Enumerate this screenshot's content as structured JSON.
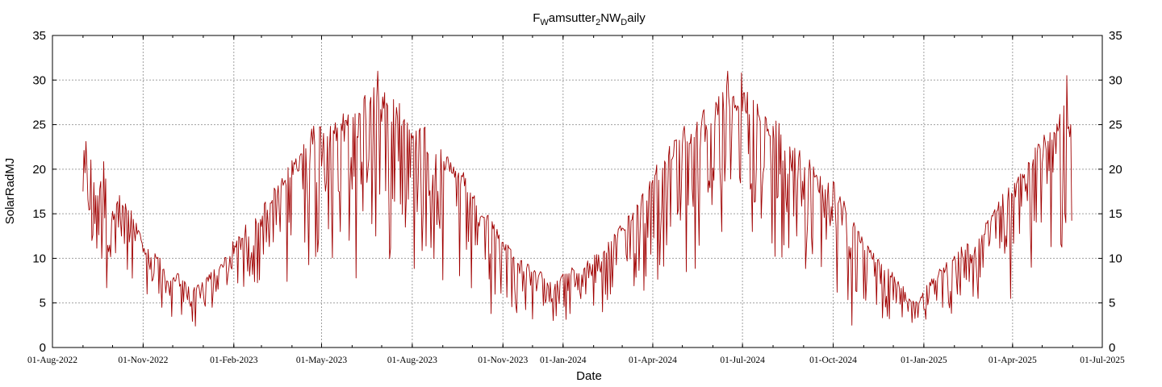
{
  "chart_data": {
    "type": "line",
    "title": {
      "parts": [
        {
          "text": "F",
          "sub": false
        },
        {
          "text": "W",
          "sub": true
        },
        {
          "text": "amsutter",
          "sub": false
        },
        {
          "text": "2",
          "sub": true
        },
        {
          "text": "NW",
          "sub": false
        },
        {
          "text": "D",
          "sub": true
        },
        {
          "text": "aily",
          "sub": false
        }
      ]
    },
    "xlabel": "Date",
    "ylabel": "SolarRadMJ",
    "ylim": [
      0,
      35
    ],
    "yticks": [
      "0",
      "5",
      "10",
      "15",
      "20",
      "25",
      "30",
      "35"
    ],
    "xlim": [
      "2022-08-01",
      "2025-07-01"
    ],
    "xticks": [
      {
        "date": "2022-08-01",
        "label": "01-Aug-2022"
      },
      {
        "date": "2022-11-01",
        "label": "01-Nov-2022"
      },
      {
        "date": "2023-02-01",
        "label": "01-Feb-2023"
      },
      {
        "date": "2023-05-01",
        "label": "01-May-2023"
      },
      {
        "date": "2023-08-01",
        "label": "01-Aug-2023"
      },
      {
        "date": "2023-11-01",
        "label": "01-Nov-2023"
      },
      {
        "date": "2024-01-01",
        "label": "01-Jan-2024"
      },
      {
        "date": "2024-04-01",
        "label": "01-Apr-2024"
      },
      {
        "date": "2024-07-01",
        "label": "01-Jul-2024"
      },
      {
        "date": "2024-10-01",
        "label": "01-Oct-2024"
      },
      {
        "date": "2025-01-01",
        "label": "01-Jan-2025"
      },
      {
        "date": "2025-04-01",
        "label": "01-Apr-2025"
      },
      {
        "date": "2025-07-01",
        "label": "01-Jul-2025"
      }
    ],
    "grid": true,
    "series": [
      {
        "color": "#a00000",
        "start_date": "2022-09-01",
        "end_date": "2025-05-31",
        "points": [
          [
            "2022-09-01",
            23.6
          ],
          [
            "2022-09-08",
            21.5
          ],
          [
            "2022-09-15",
            17.0
          ],
          [
            "2022-09-22",
            20.5
          ],
          [
            "2022-09-29",
            14.0
          ],
          [
            "2022-10-06",
            17.2
          ],
          [
            "2022-10-13",
            15.8
          ],
          [
            "2022-10-20",
            15.2
          ],
          [
            "2022-10-27",
            13.0
          ],
          [
            "2022-11-03",
            11.5
          ],
          [
            "2022-11-10",
            10.8
          ],
          [
            "2022-11-17",
            10.2
          ],
          [
            "2022-11-24",
            8.0
          ],
          [
            "2022-12-01",
            7.5
          ],
          [
            "2022-12-08",
            8.5
          ],
          [
            "2022-12-15",
            7.2
          ],
          [
            "2022-12-22",
            6.5
          ],
          [
            "2022-12-29",
            7.0
          ],
          [
            "2023-01-05",
            7.8
          ],
          [
            "2023-01-12",
            8.6
          ],
          [
            "2023-01-19",
            9.5
          ],
          [
            "2023-01-26",
            10.4
          ],
          [
            "2023-02-02",
            12.0
          ],
          [
            "2023-02-09",
            12.8
          ],
          [
            "2023-02-16",
            13.8
          ],
          [
            "2023-02-23",
            14.5
          ],
          [
            "2023-03-02",
            15.5
          ],
          [
            "2023-03-09",
            16.8
          ],
          [
            "2023-03-16",
            17.8
          ],
          [
            "2023-03-23",
            19.0
          ],
          [
            "2023-03-30",
            20.0
          ],
          [
            "2023-04-06",
            21.5
          ],
          [
            "2023-04-13",
            22.5
          ],
          [
            "2023-04-20",
            24.0
          ],
          [
            "2023-04-27",
            25.2
          ],
          [
            "2023-05-04",
            26.0
          ],
          [
            "2023-05-11",
            24.5
          ],
          [
            "2023-05-18",
            26.8
          ],
          [
            "2023-05-25",
            25.0
          ],
          [
            "2023-06-01",
            27.0
          ],
          [
            "2023-06-08",
            26.0
          ],
          [
            "2023-06-15",
            28.0
          ],
          [
            "2023-06-22",
            29.5
          ],
          [
            "2023-06-29",
            28.5
          ],
          [
            "2023-07-06",
            27.5
          ],
          [
            "2023-07-13",
            29.0
          ],
          [
            "2023-07-20",
            26.5
          ],
          [
            "2023-07-27",
            25.0
          ],
          [
            "2023-08-03",
            24.0
          ],
          [
            "2023-08-10",
            25.5
          ],
          [
            "2023-08-17",
            23.0
          ],
          [
            "2023-08-24",
            23.5
          ],
          [
            "2023-08-31",
            21.5
          ],
          [
            "2023-09-07",
            21.0
          ],
          [
            "2023-09-14",
            20.0
          ],
          [
            "2023-09-21",
            19.5
          ],
          [
            "2023-09-28",
            17.5
          ],
          [
            "2023-10-05",
            16.5
          ],
          [
            "2023-10-12",
            15.5
          ],
          [
            "2023-10-19",
            14.5
          ],
          [
            "2023-10-26",
            13.0
          ],
          [
            "2023-11-02",
            12.0
          ],
          [
            "2023-11-09",
            11.0
          ],
          [
            "2023-11-16",
            10.0
          ],
          [
            "2023-11-23",
            9.5
          ],
          [
            "2023-11-30",
            9.0
          ],
          [
            "2023-12-07",
            8.5
          ],
          [
            "2023-12-14",
            8.0
          ],
          [
            "2023-12-21",
            7.5
          ],
          [
            "2023-12-28",
            7.8
          ],
          [
            "2024-01-04",
            8.2
          ],
          [
            "2024-01-11",
            8.8
          ],
          [
            "2024-01-18",
            8.0
          ],
          [
            "2024-01-25",
            9.5
          ],
          [
            "2024-02-01",
            10.0
          ],
          [
            "2024-02-08",
            10.8
          ],
          [
            "2024-02-15",
            11.5
          ],
          [
            "2024-02-22",
            12.5
          ],
          [
            "2024-02-29",
            13.5
          ],
          [
            "2024-03-07",
            14.5
          ],
          [
            "2024-03-14",
            15.5
          ],
          [
            "2024-03-21",
            17.0
          ],
          [
            "2024-03-28",
            18.5
          ],
          [
            "2024-04-04",
            20.0
          ],
          [
            "2024-04-11",
            21.0
          ],
          [
            "2024-04-18",
            22.0
          ],
          [
            "2024-04-25",
            23.5
          ],
          [
            "2024-05-02",
            24.5
          ],
          [
            "2024-05-09",
            23.0
          ],
          [
            "2024-05-16",
            26.0
          ],
          [
            "2024-05-23",
            26.5
          ],
          [
            "2024-05-30",
            25.5
          ],
          [
            "2024-06-06",
            28.0
          ],
          [
            "2024-06-13",
            28.5
          ],
          [
            "2024-06-20",
            29.0
          ],
          [
            "2024-06-27",
            27.5
          ],
          [
            "2024-07-04",
            28.5
          ],
          [
            "2024-07-11",
            27.0
          ],
          [
            "2024-07-18",
            26.5
          ],
          [
            "2024-07-25",
            26.0
          ],
          [
            "2024-08-01",
            24.5
          ],
          [
            "2024-08-08",
            25.5
          ],
          [
            "2024-08-15",
            23.0
          ],
          [
            "2024-08-22",
            22.5
          ],
          [
            "2024-08-29",
            21.5
          ],
          [
            "2024-09-05",
            21.0
          ],
          [
            "2024-09-12",
            20.0
          ],
          [
            "2024-09-19",
            19.5
          ],
          [
            "2024-09-26",
            19.0
          ],
          [
            "2024-10-03",
            18.0
          ],
          [
            "2024-10-10",
            16.5
          ],
          [
            "2024-10-17",
            15.0
          ],
          [
            "2024-10-24",
            13.5
          ],
          [
            "2024-10-31",
            12.0
          ],
          [
            "2024-11-07",
            11.0
          ],
          [
            "2024-11-14",
            10.0
          ],
          [
            "2024-11-21",
            9.0
          ],
          [
            "2024-11-28",
            8.5
          ],
          [
            "2024-12-05",
            7.5
          ],
          [
            "2024-12-12",
            6.5
          ],
          [
            "2024-12-19",
            5.5
          ],
          [
            "2024-12-26",
            5.0
          ],
          [
            "2025-01-02",
            6.5
          ],
          [
            "2025-01-09",
            7.5
          ],
          [
            "2025-01-16",
            8.5
          ],
          [
            "2025-01-23",
            9.5
          ],
          [
            "2025-01-30",
            10.0
          ],
          [
            "2025-02-06",
            10.8
          ],
          [
            "2025-02-13",
            11.5
          ],
          [
            "2025-02-20",
            11.0
          ],
          [
            "2025-02-27",
            12.0
          ],
          [
            "2025-03-06",
            14.0
          ],
          [
            "2025-03-13",
            15.5
          ],
          [
            "2025-03-20",
            16.5
          ],
          [
            "2025-03-27",
            17.5
          ],
          [
            "2025-04-03",
            18.5
          ],
          [
            "2025-04-10",
            19.5
          ],
          [
            "2025-04-17",
            21.0
          ],
          [
            "2025-04-24",
            22.0
          ],
          [
            "2025-05-01",
            23.0
          ],
          [
            "2025-05-08",
            24.5
          ],
          [
            "2025-05-15",
            25.0
          ],
          [
            "2025-05-22",
            26.5
          ],
          [
            "2025-05-31",
            25.0
          ]
        ],
        "low_spikes": [
          [
            "2022-09-10",
            12.0
          ],
          [
            "2022-09-25",
            6.7
          ],
          [
            "2022-10-10",
            12.5
          ],
          [
            "2022-11-05",
            6.0
          ],
          [
            "2022-11-20",
            4.5
          ],
          [
            "2022-12-10",
            3.7
          ],
          [
            "2023-01-10",
            4.5
          ],
          [
            "2023-02-20",
            8.2
          ],
          [
            "2023-03-20",
            13.0
          ],
          [
            "2023-04-25",
            10.2
          ],
          [
            "2023-05-20",
            13.0
          ],
          [
            "2023-06-05",
            7.8
          ],
          [
            "2023-06-25",
            12.5
          ],
          [
            "2023-07-25",
            13.5
          ],
          [
            "2023-08-20",
            11.2
          ],
          [
            "2023-09-25",
            11.0
          ],
          [
            "2023-10-20",
            3.8
          ],
          [
            "2023-11-15",
            3.9
          ],
          [
            "2023-12-01",
            3.2
          ],
          [
            "2024-01-08",
            3.8
          ],
          [
            "2024-02-10",
            4.0
          ],
          [
            "2024-03-25",
            8.0
          ],
          [
            "2024-05-05",
            8.5
          ],
          [
            "2024-06-10",
            13.0
          ],
          [
            "2024-07-20",
            14.5
          ],
          [
            "2024-08-25",
            12.5
          ],
          [
            "2024-09-10",
            10.5
          ],
          [
            "2024-10-05",
            6.2
          ],
          [
            "2024-10-20",
            2.5
          ],
          [
            "2024-11-25",
            3.5
          ],
          [
            "2024-12-20",
            2.8
          ],
          [
            "2025-01-20",
            4.5
          ],
          [
            "2025-02-25",
            5.5
          ],
          [
            "2025-03-30",
            5.5
          ],
          [
            "2025-04-20",
            9.0
          ],
          [
            "2025-05-10",
            11.3
          ],
          [
            "2025-05-25",
            14.0
          ]
        ],
        "peaks": [
          [
            "2023-06-27",
            31.0
          ],
          [
            "2024-06-16",
            31.0
          ],
          [
            "2024-06-30",
            30.8
          ],
          [
            "2025-05-26",
            30.5
          ]
        ]
      }
    ]
  }
}
